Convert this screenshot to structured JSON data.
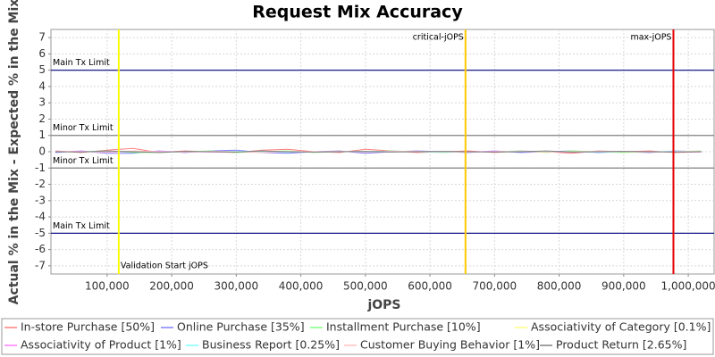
{
  "chart_data": {
    "type": "line",
    "title": "Request Mix Accuracy",
    "x_label": "jOPS",
    "y_label": "Actual % in the Mix - Expected % in the Mix",
    "xlim": [
      13000,
      1040000
    ],
    "ylim": [
      -7.5,
      7.5
    ],
    "xticks": [
      {
        "value": 100000,
        "label": "100,000"
      },
      {
        "value": 200000,
        "label": "200,000"
      },
      {
        "value": 300000,
        "label": "300,000"
      },
      {
        "value": 400000,
        "label": "400,000"
      },
      {
        "value": 500000,
        "label": "500,000"
      },
      {
        "value": 600000,
        "label": "600,000"
      },
      {
        "value": 700000,
        "label": "700,000"
      },
      {
        "value": 800000,
        "label": "800,000"
      },
      {
        "value": 900000,
        "label": "900,000"
      },
      {
        "value": 1000000,
        "label": "1,000,000"
      }
    ],
    "yticks": [
      -7,
      -6,
      -5,
      -4,
      -3,
      -2,
      -1,
      0,
      1,
      2,
      3,
      4,
      5,
      6,
      7
    ],
    "grid": true,
    "annotations": {
      "horizontal": [
        {
          "label": "Main Tx Limit",
          "value": 5,
          "color": "#000080"
        },
        {
          "label": "Minor Tx Limit",
          "value": 1,
          "color": "#808080"
        },
        {
          "label": "Minor Tx Limit",
          "value": -1,
          "color": "#808080"
        },
        {
          "label": "Main Tx Limit",
          "value": -5,
          "color": "#000080"
        }
      ],
      "vertical": [
        {
          "label": "Validation Start jOPS",
          "value": 118000,
          "color": "#ffff00"
        },
        {
          "label": "critical-jOPS",
          "value": 655000,
          "color": "#ffc800"
        },
        {
          "label": "max-jOPS",
          "value": 977000,
          "color": "#e00000"
        }
      ]
    },
    "x": [
      20000,
      60000,
      100000,
      140000,
      180000,
      220000,
      260000,
      300000,
      340000,
      380000,
      420000,
      460000,
      500000,
      540000,
      580000,
      620000,
      660000,
      700000,
      740000,
      780000,
      820000,
      860000,
      900000,
      940000,
      980000,
      1020000
    ],
    "series": [
      {
        "name": "In-store Purchase [50%]",
        "color": "#ff8080",
        "values": [
          0.05,
          -0.05,
          0.1,
          0.2,
          -0.05,
          0.05,
          0.0,
          -0.05,
          0.1,
          0.15,
          0.0,
          -0.05,
          0.15,
          0.05,
          -0.05,
          0.0,
          0.05,
          -0.05,
          0.05,
          0.0,
          -0.1,
          0.05,
          0.0,
          0.05,
          -0.05,
          0.0
        ]
      },
      {
        "name": "Online Purchase [35%]",
        "color": "#8080ff",
        "values": [
          -0.05,
          0.05,
          -0.1,
          -0.1,
          0.05,
          -0.05,
          0.05,
          0.1,
          -0.05,
          -0.1,
          0.0,
          0.05,
          -0.1,
          0.0,
          0.05,
          0.0,
          -0.05,
          0.05,
          -0.05,
          0.0,
          0.05,
          -0.05,
          0.0,
          -0.05,
          0.05,
          0.0
        ]
      },
      {
        "name": "Installment Purchase [10%]",
        "color": "#80ff80",
        "values": [
          0.0,
          0.0,
          0.05,
          -0.05,
          -0.05,
          0.0,
          0.05,
          -0.05,
          0.0,
          0.05,
          -0.05,
          0.0,
          0.0,
          0.05,
          0.0,
          -0.05,
          0.0,
          0.0,
          0.05,
          -0.05,
          0.05,
          0.0,
          -0.05,
          0.0,
          0.0,
          0.05
        ]
      },
      {
        "name": "Associativity of Category [0.1%]",
        "color": "#ffff80",
        "values": [
          0.0,
          0.0,
          0.0,
          0.0,
          0.0,
          0.0,
          0.0,
          0.0,
          0.0,
          0.0,
          0.0,
          0.0,
          0.0,
          0.0,
          0.0,
          0.0,
          0.0,
          0.0,
          0.0,
          0.0,
          0.0,
          0.0,
          0.0,
          0.0,
          0.0,
          0.0
        ]
      },
      {
        "name": "Associativity of Product [1%]",
        "color": "#ff80ff",
        "values": [
          0.0,
          0.02,
          -0.02,
          0.0,
          0.02,
          0.0,
          -0.02,
          0.0,
          0.02,
          0.0,
          -0.02,
          0.0,
          0.0,
          0.02,
          0.0,
          -0.02,
          0.0,
          0.02,
          0.0,
          0.0,
          -0.02,
          0.0,
          0.02,
          0.0,
          0.0,
          -0.02
        ]
      },
      {
        "name": "Business Report [0.25%]",
        "color": "#80ffff",
        "values": [
          0.0,
          0.0,
          0.02,
          0.0,
          -0.02,
          0.0,
          0.0,
          0.02,
          0.0,
          -0.02,
          0.0,
          0.0,
          0.02,
          0.0,
          0.0,
          -0.02,
          0.0,
          0.0,
          0.02,
          0.0,
          0.0,
          -0.02,
          0.0,
          0.0,
          0.02,
          0.0
        ]
      },
      {
        "name": "Customer Buying Behavior [1%]",
        "color": "#ffc0c0",
        "values": [
          0.02,
          0.0,
          -0.02,
          0.05,
          0.0,
          -0.02,
          0.02,
          0.0,
          -0.05,
          0.02,
          0.0,
          0.02,
          -0.02,
          0.0,
          0.02,
          0.0,
          -0.02,
          0.0,
          0.02,
          -0.02,
          0.0,
          0.02,
          0.0,
          -0.02,
          0.0,
          0.02
        ]
      },
      {
        "name": "Product Return [2.65%]",
        "color": "#808080",
        "values": [
          0.0,
          -0.02,
          0.05,
          0.0,
          -0.05,
          0.02,
          0.0,
          -0.02,
          0.05,
          0.0,
          -0.02,
          0.0,
          0.02,
          -0.02,
          0.0,
          0.02,
          0.0,
          -0.02,
          0.0,
          0.05,
          -0.02,
          0.0,
          0.02,
          0.0,
          -0.02,
          0.0
        ]
      }
    ]
  }
}
